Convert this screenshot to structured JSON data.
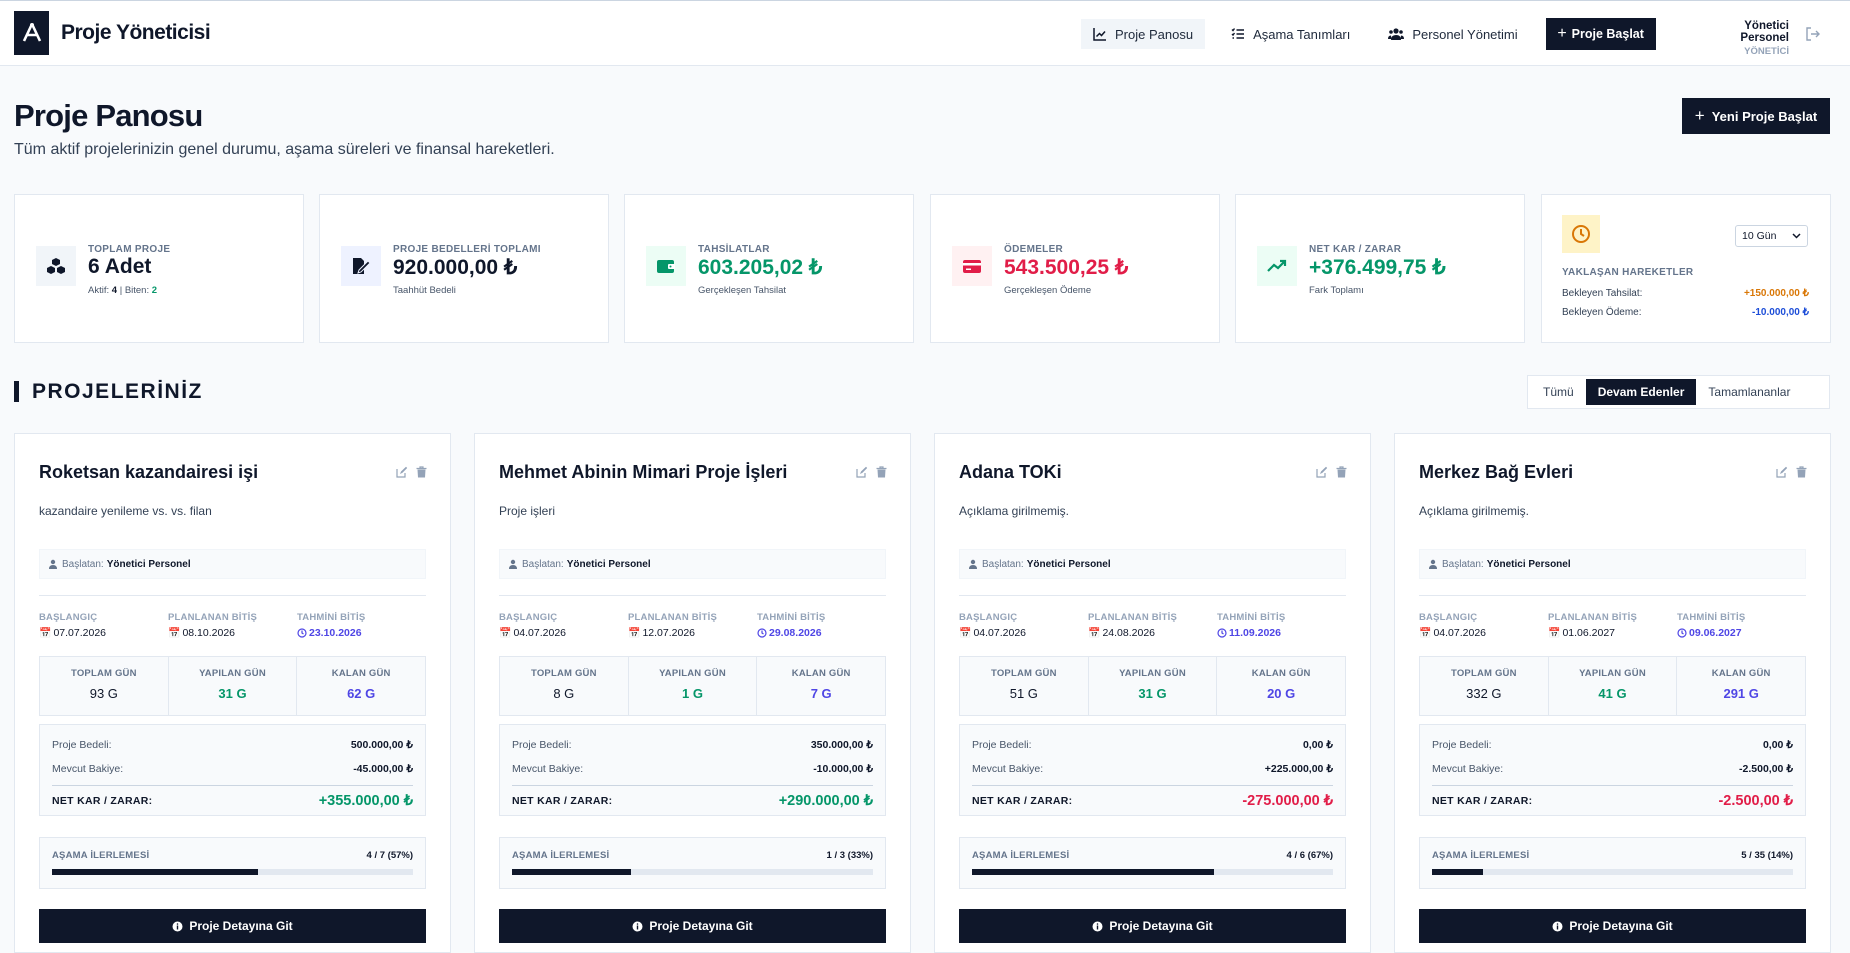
{
  "header": {
    "brand": "Proje Yöneticisi",
    "nav": [
      {
        "label": "Proje Panosu",
        "icon": "chart-line-icon"
      },
      {
        "label": "Aşama Tanımları",
        "icon": "list-icon"
      },
      {
        "label": "Personel Yönetimi",
        "icon": "users-icon"
      }
    ],
    "start_button": "Proje Başlat",
    "user_name": "Yönetici Personel",
    "user_role": "YÖNETİCİ"
  },
  "page": {
    "title": "Proje Panosu",
    "subtitle": "Tüm aktif projelerinizin genel durumu, aşama süreleri ve finansal hareketleri.",
    "new_project_button": "Yeni Proje Başlat"
  },
  "stats": {
    "total": {
      "label": "TOPLAM PROJE",
      "value": "6 Adet",
      "active_label": "Aktif:",
      "active": "4",
      "done_label": "Biten:",
      "done": "2"
    },
    "contract": {
      "label": "PROJE BEDELLERİ TOPLAMI",
      "value": "920.000,00 ₺",
      "sub": "Taahhüt Bedeli"
    },
    "collections": {
      "label": "TAHSİLATLAR",
      "value": "603.205,02 ₺",
      "sub": "Gerçekleşen Tahsilat"
    },
    "payments": {
      "label": "ÖDEMELER",
      "value": "543.500,25 ₺",
      "sub": "Gerçekleşen Ödeme"
    },
    "net": {
      "label": "NET KAR / ZARAR",
      "value": "+376.499,75 ₺",
      "sub": "Fark Toplamı"
    },
    "upcoming": {
      "label": "YAKLAŞAN HAREKETLER",
      "period": "10 Gün",
      "pending_collection_label": "Bekleyen Tahsilat:",
      "pending_collection": "+150.000,00 ₺",
      "pending_payment_label": "Bekleyen Ödeme:",
      "pending_payment": "-10.000,00 ₺"
    }
  },
  "section": {
    "title": "PROJELERİNİZ",
    "filters": [
      "Tümü",
      "Devam Edenler",
      "Tamamlananlar"
    ],
    "active_filter": "Devam Edenler"
  },
  "labels": {
    "starter": "Başlatan:",
    "start": "BAŞLANGIÇ",
    "planned_end": "PLANLANAN BİTİŞ",
    "est_end": "TAHMİNİ BİTİŞ",
    "total_days": "TOPLAM GÜN",
    "done_days": "YAPILAN GÜN",
    "left_days": "KALAN GÜN",
    "contract": "Proje Bedeli:",
    "balance": "Mevcut Bakiye:",
    "net": "NET KAR / ZARAR:",
    "progress": "AŞAMA İLERLEMESİ",
    "detail_button": "Proje Detayına Git"
  },
  "projects": [
    {
      "title": "Roketsan kazandairesi işi",
      "desc": "kazandaire yenileme vs. vs. filan",
      "starter": "Yönetici Personel",
      "start": "07.07.2026",
      "planned_end": "08.10.2026",
      "est_end": "23.10.2026",
      "total_days": "93 G",
      "done_days": "31 G",
      "left_days": "62 G",
      "contract": "500.000,00 ₺",
      "balance": "-45.000,00 ₺",
      "balance_positive": false,
      "net": "+355.000,00 ₺",
      "net_positive": true,
      "progress_text": "4 / 7 (57%)",
      "progress": 0.57
    },
    {
      "title": "Mehmet Abinin Mimari Proje İşleri",
      "desc": "Proje işleri",
      "starter": "Yönetici Personel",
      "start": "04.07.2026",
      "planned_end": "12.07.2026",
      "est_end": "29.08.2026",
      "total_days": "8 G",
      "done_days": "1 G",
      "left_days": "7 G",
      "contract": "350.000,00 ₺",
      "balance": "-10.000,00 ₺",
      "balance_positive": false,
      "net": "+290.000,00 ₺",
      "net_positive": true,
      "progress_text": "1 / 3 (33%)",
      "progress": 0.33
    },
    {
      "title": "Adana TOKi",
      "desc": "Açıklama girilmemiş.",
      "starter": "Yönetici Personel",
      "start": "04.07.2026",
      "planned_end": "24.08.2026",
      "est_end": "11.09.2026",
      "total_days": "51 G",
      "done_days": "31 G",
      "left_days": "20 G",
      "contract": "0,00 ₺",
      "balance": "+225.000,00 ₺",
      "balance_positive": true,
      "net": "-275.000,00 ₺",
      "net_positive": false,
      "progress_text": "4 / 6 (67%)",
      "progress": 0.67
    },
    {
      "title": "Merkez Bağ Evleri",
      "desc": "Açıklama girilmemiş.",
      "starter": "Yönetici Personel",
      "start": "04.07.2026",
      "planned_end": "01.06.2027",
      "est_end": "09.06.2027",
      "total_days": "332 G",
      "done_days": "41 G",
      "left_days": "291 G",
      "contract": "0,00 ₺",
      "balance": "-2.500,00 ₺",
      "balance_positive": false,
      "net": "-2.500,00 ₺",
      "net_positive": false,
      "progress_text": "5 / 35 (14%)",
      "progress": 0.14
    }
  ]
}
